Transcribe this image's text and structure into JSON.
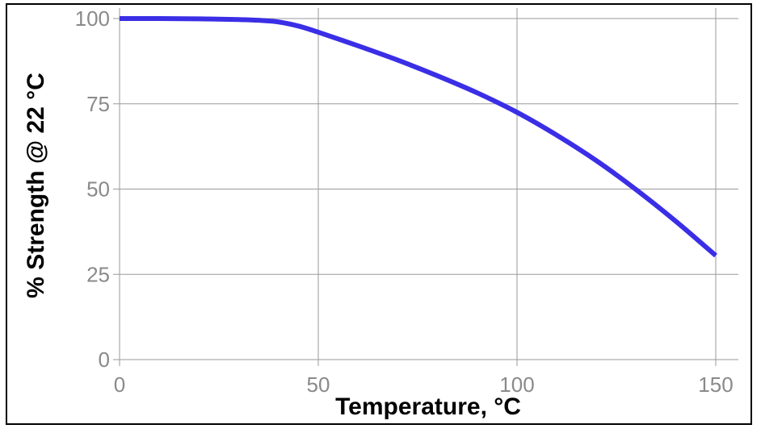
{
  "chart_data": {
    "type": "line",
    "title": "",
    "xlabel": "Temperature, °C",
    "ylabel": "% Strength @ 22 °C",
    "xlim": [
      0,
      150
    ],
    "ylim": [
      0,
      100
    ],
    "x_ticks": [
      "0",
      "50",
      "100",
      "150"
    ],
    "y_ticks": [
      "0",
      "25",
      "50",
      "75",
      "100"
    ],
    "grid": true,
    "legend": "none",
    "series": [
      {
        "color": "#3a2ee6",
        "x": [
          0,
          10,
          20,
          30,
          35,
          40,
          45,
          50,
          60,
          70,
          80,
          90,
          100,
          110,
          120,
          130,
          140,
          150
        ],
        "y": [
          100,
          100,
          99.9,
          99.7,
          99.5,
          99,
          97.8,
          96,
          92,
          87.8,
          83.2,
          78.2,
          72.5,
          65.8,
          58.3,
          49.8,
          40.5,
          30.5
        ]
      }
    ]
  }
}
